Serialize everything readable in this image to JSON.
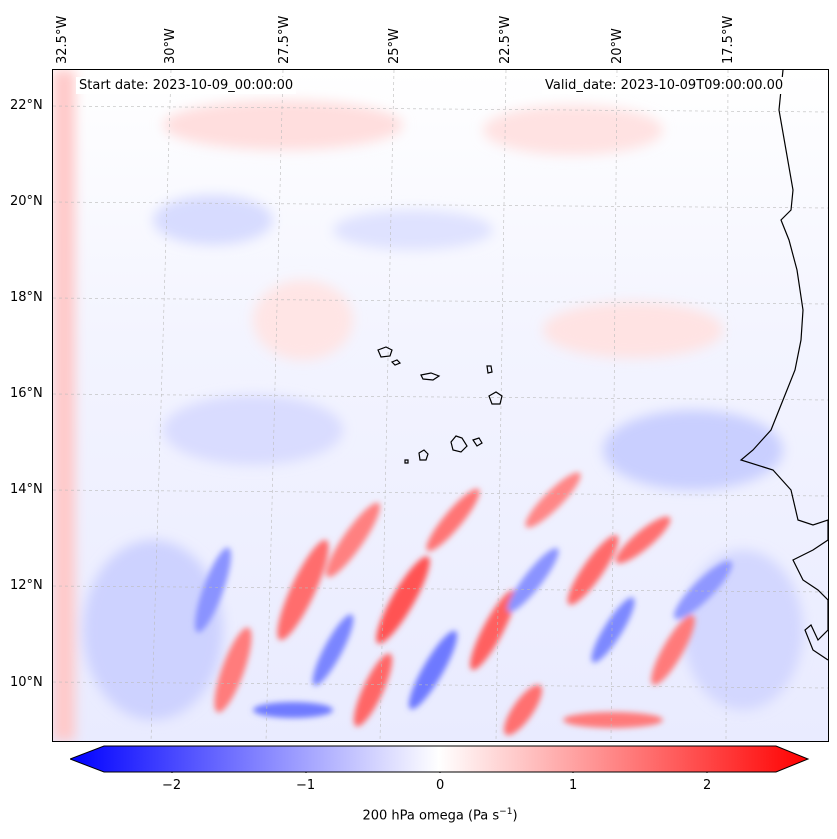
{
  "map": {
    "start_label": "Start date: 2023-10-09_00:00:00",
    "valid_label": "Valid_date: 2023-10-09T09:00:00.00",
    "lon_labels": [
      "32.5°W",
      "30°W",
      "27.5°W",
      "25°W",
      "22.5°W",
      "20°W",
      "17.5°W"
    ],
    "lat_labels": [
      "22°N",
      "20°N",
      "18°N",
      "16°N",
      "14°N",
      "12°N",
      "10°N"
    ]
  },
  "colorbar": {
    "title": "200 hPa omega (Pa s",
    "title_sup": "−1",
    "title_tail": ")",
    "ticks": [
      "−2",
      "−1",
      "0",
      "1",
      "2"
    ],
    "neg_color": "#0000ff",
    "mid_color": "#ffffff",
    "pos_color": "#ff0000"
  }
}
